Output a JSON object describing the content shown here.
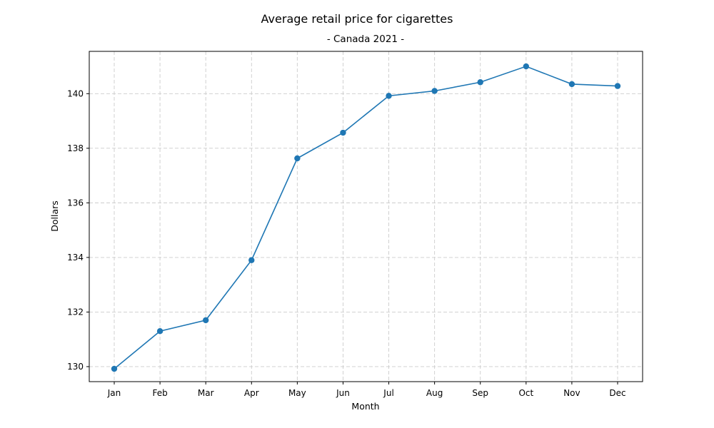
{
  "chart_data": {
    "type": "line",
    "title": "Average retail price for cigarettes",
    "subtitle": "- Canada 2021 -",
    "xlabel": "Month",
    "ylabel": "Dollars",
    "categories": [
      "Jan",
      "Feb",
      "Mar",
      "Apr",
      "May",
      "Jun",
      "Jul",
      "Aug",
      "Sep",
      "Oct",
      "Nov",
      "Dec"
    ],
    "values": [
      129.92,
      131.3,
      131.7,
      133.9,
      137.63,
      138.57,
      139.92,
      140.1,
      140.42,
      141.0,
      140.35,
      140.28
    ],
    "ylim": [
      129.45,
      141.55
    ],
    "yticks": [
      130,
      132,
      134,
      136,
      138,
      140
    ],
    "grid": true,
    "line_color": "#1f77b4",
    "marker": "circle"
  }
}
